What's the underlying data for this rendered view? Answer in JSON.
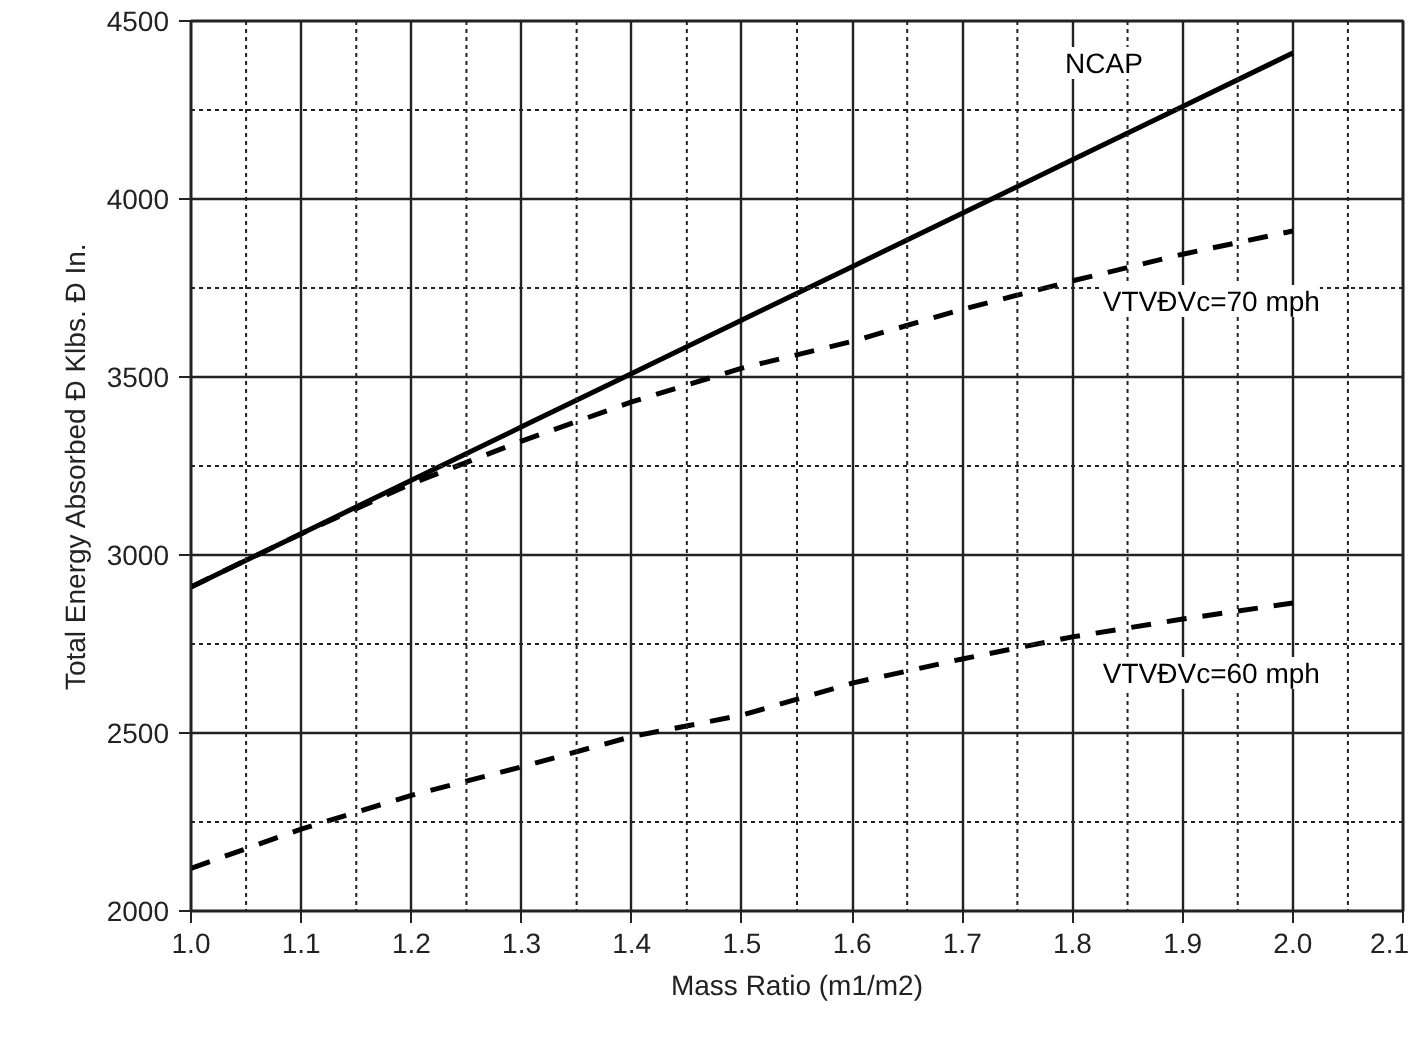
{
  "chart_data": {
    "type": "line",
    "xlabel": "Mass Ratio (m1/m2)",
    "ylabel": "Total Energy Absorbed Ð Klbs. Ð In.",
    "x": [
      1.0,
      1.1,
      1.2,
      1.3,
      1.4,
      1.5,
      1.6,
      1.7,
      1.8,
      1.9,
      2.0
    ],
    "series": [
      {
        "name": "NCAP",
        "color": "#000000",
        "line_style": "solid",
        "values": [
          2910,
          3060,
          3210,
          3360,
          3510,
          3660,
          3810,
          3960,
          4110,
          4260,
          4410
        ]
      },
      {
        "name": "VTVÐVc=70 mph",
        "color": "#000000",
        "line_style": "dashed",
        "values": [
          2910,
          3060,
          3200,
          3320,
          3430,
          3525,
          3600,
          3690,
          3770,
          3845,
          3910
        ]
      },
      {
        "name": "VTVÐVc=60 mph",
        "color": "#000000",
        "line_style": "dashed",
        "values": [
          2120,
          2230,
          2325,
          2405,
          2490,
          2550,
          2640,
          2708,
          2770,
          2820,
          2865
        ]
      }
    ],
    "xlim": [
      1.0,
      2.1
    ],
    "ylim": [
      2000,
      4500
    ],
    "xticks": [
      {
        "value": 1.0,
        "label": "1.0"
      },
      {
        "value": 1.1,
        "label": "1.1"
      },
      {
        "value": 1.2,
        "label": "1.2"
      },
      1.3,
      1.4,
      1.5,
      1.6,
      1.7,
      1.8,
      1.9,
      {
        "value": 2.0,
        "label": "2.0"
      },
      2.1
    ],
    "yticks": [
      2000,
      2500,
      3000,
      3500,
      4000,
      4500
    ],
    "grid": true,
    "marker": "none"
  }
}
